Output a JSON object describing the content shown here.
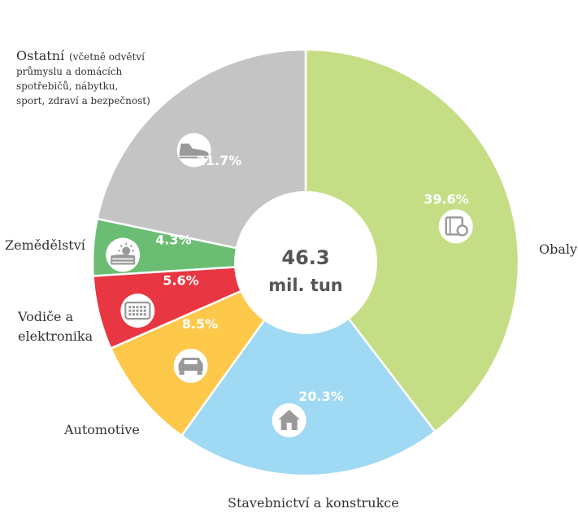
{
  "chart_data": {
    "type": "pie",
    "center_total": "46.3",
    "center_unit": "mil. tun",
    "slices": [
      {
        "name": "Obaly",
        "value": 39.6,
        "value_label": "39.6%",
        "color": "#c5dd85",
        "icon": "packaging-icon"
      },
      {
        "name": "Stavebnictví a konstrukce",
        "value": 20.3,
        "value_label": "20.3%",
        "color": "#9fd9f3",
        "icon": "house-icon"
      },
      {
        "name": "Automotive",
        "value": 8.5,
        "value_label": "8.5%",
        "color": "#fec84b",
        "icon": "car-icon"
      },
      {
        "name": "Vodiče a elektronika",
        "value": 5.6,
        "value_label": "5.6%",
        "color": "#e83642",
        "icon": "keyboard-icon"
      },
      {
        "name": "Zemědělství",
        "value": 4.3,
        "value_label": "4.3%",
        "color": "#6bbd73",
        "icon": "field-icon"
      },
      {
        "name": "Ostatní",
        "value": 21.7,
        "value_label": "21.7%",
        "color": "#c4c4c4",
        "icon": "shoe-icon"
      }
    ],
    "labels": {
      "obaly": "Obaly",
      "stavebnictvi": "Stavebnictví a konstrukce",
      "automotive": "Automotive",
      "vodice_line1": "Vodiče a",
      "vodice_line2": "elektronika",
      "zemedelstvi": "Zemědělství",
      "ostatni": "Ostatní",
      "ostatni_note_line1": "(včetně odvětví",
      "ostatni_note_line2": "průmyslu a domácích",
      "ostatni_note_line3": "spotřebičů, nábytku,",
      "ostatni_note_line4": "sport, zdraví a bezpečnost)"
    }
  }
}
